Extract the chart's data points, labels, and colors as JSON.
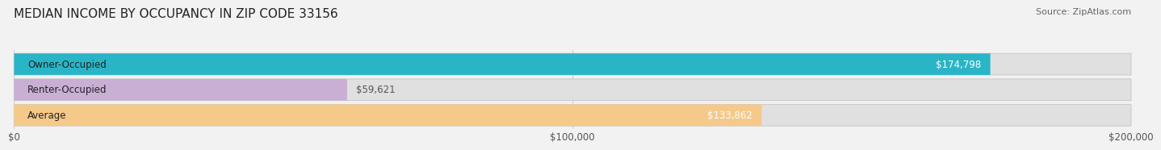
{
  "title": "MEDIAN INCOME BY OCCUPANCY IN ZIP CODE 33156",
  "source": "Source: ZipAtlas.com",
  "categories": [
    "Owner-Occupied",
    "Renter-Occupied",
    "Average"
  ],
  "values": [
    174798,
    59621,
    133862
  ],
  "bar_colors": [
    "#2ab5c7",
    "#c9afd4",
    "#f5c98a"
  ],
  "value_labels": [
    "$174,798",
    "$59,621",
    "$133,862"
  ],
  "value_inside": [
    true,
    false,
    true
  ],
  "xlim": [
    0,
    200000
  ],
  "xticks": [
    0,
    100000,
    200000
  ],
  "xtick_labels": [
    "$0",
    "$100,000",
    "$200,000"
  ],
  "background_color": "#f2f2f2",
  "bar_background_color": "#e0e0e0",
  "title_fontsize": 11,
  "source_fontsize": 8,
  "label_fontsize": 8.5,
  "value_fontsize": 8.5,
  "bar_height": 0.62
}
